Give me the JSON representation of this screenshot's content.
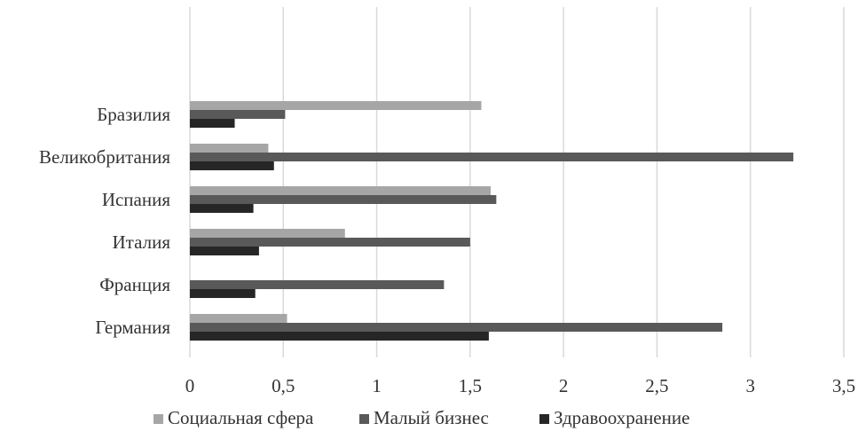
{
  "chart_data": {
    "type": "bar",
    "orientation": "horizontal",
    "title": "",
    "xlabel": "",
    "ylabel": "",
    "categories": [
      "Бразилия",
      "Великобритания",
      "Испания",
      "Италия",
      "Франция",
      "Германия"
    ],
    "series": [
      {
        "name": "Социальная сфера",
        "values": [
          1.56,
          0.42,
          1.61,
          0.83,
          0,
          0.52
        ]
      },
      {
        "name": "Малый бизнес",
        "values": [
          0.51,
          3.23,
          1.64,
          1.5,
          1.36,
          2.85
        ]
      },
      {
        "name": "Здравоохранение",
        "values": [
          0.24,
          0.45,
          0.34,
          0.37,
          0.35,
          1.6
        ]
      }
    ],
    "xlim": [
      0,
      3.5
    ],
    "xticks": [
      "0",
      "0,5",
      "1",
      "1,5",
      "2",
      "2,5",
      "3",
      "3,5"
    ],
    "grid": "vertical",
    "legend": "bottom",
    "colors": [
      "#a6a6a6",
      "#595959",
      "#262626"
    ],
    "grid_color": "#d9d9d9"
  }
}
